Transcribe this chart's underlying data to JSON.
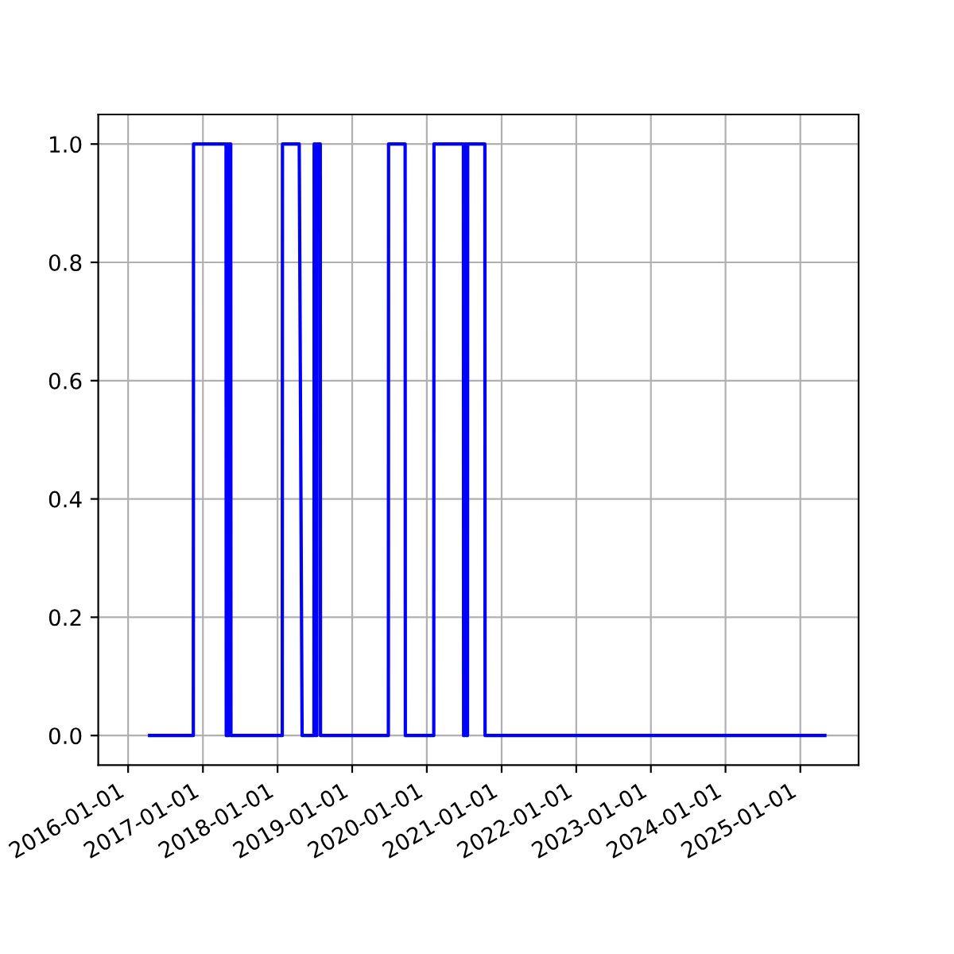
{
  "chart_data": {
    "type": "line",
    "x": [
      "2016-04-15",
      "2016-11-15",
      "2016-11-16",
      "2017-04-24",
      "2017-04-25",
      "2017-04-30",
      "2017-05-01",
      "2017-05-05",
      "2017-05-06",
      "2017-05-10",
      "2017-05-11",
      "2017-05-17",
      "2017-05-18",
      "2018-01-24",
      "2018-01-25",
      "2018-04-17",
      "2018-05-01",
      "2018-06-28",
      "2018-06-29",
      "2018-07-05",
      "2018-07-06",
      "2018-07-12",
      "2018-07-13",
      "2018-07-29",
      "2018-07-30",
      "2019-06-27",
      "2019-06-28",
      "2019-09-17",
      "2019-09-18",
      "2020-02-04",
      "2020-02-05",
      "2020-06-28",
      "2020-06-29",
      "2020-07-05",
      "2020-07-06",
      "2020-07-12",
      "2020-07-13",
      "2020-07-18",
      "2020-07-19",
      "2020-10-11",
      "2020-10-12",
      "2025-05-01"
    ],
    "series": [
      {
        "color": "#0000ff",
        "values": [
          0,
          0,
          1,
          1,
          0,
          0,
          1,
          1,
          0,
          0,
          1,
          1,
          0,
          0,
          1,
          1,
          0,
          0,
          1,
          1,
          0,
          0,
          1,
          1,
          0,
          0,
          1,
          1,
          0,
          0,
          1,
          1,
          0,
          0,
          1,
          1,
          0,
          0,
          1,
          1,
          0,
          0
        ]
      }
    ],
    "xlim": [
      "2015-08-08",
      "2025-10-13"
    ],
    "xticks": [
      {
        "value": "2016-01-01",
        "label": "2016-01-01"
      },
      {
        "value": "2017-01-01",
        "label": "2017-01-01"
      },
      {
        "value": "2018-01-01",
        "label": "2018-01-01"
      },
      {
        "value": "2019-01-01",
        "label": "2019-01-01"
      },
      {
        "value": "2020-01-01",
        "label": "2020-01-01"
      },
      {
        "value": "2021-01-01",
        "label": "2021-01-01"
      },
      {
        "value": "2022-01-01",
        "label": "2022-01-01"
      },
      {
        "value": "2023-01-01",
        "label": "2023-01-01"
      },
      {
        "value": "2024-01-01",
        "label": "2024-01-01"
      },
      {
        "value": "2025-01-01",
        "label": "2025-01-01"
      }
    ],
    "ylim": [
      -0.05,
      1.05
    ],
    "yticks": [
      {
        "value": 0,
        "label": "0.0"
      },
      {
        "value": 0.2,
        "label": "0.2"
      },
      {
        "value": 0.4,
        "label": "0.4"
      },
      {
        "value": 0.6,
        "label": "0.6"
      },
      {
        "value": 0.8,
        "label": "0.8"
      },
      {
        "value": 1,
        "label": "1.0"
      }
    ],
    "grid": true,
    "marker": "none",
    "line_style": "solid"
  }
}
